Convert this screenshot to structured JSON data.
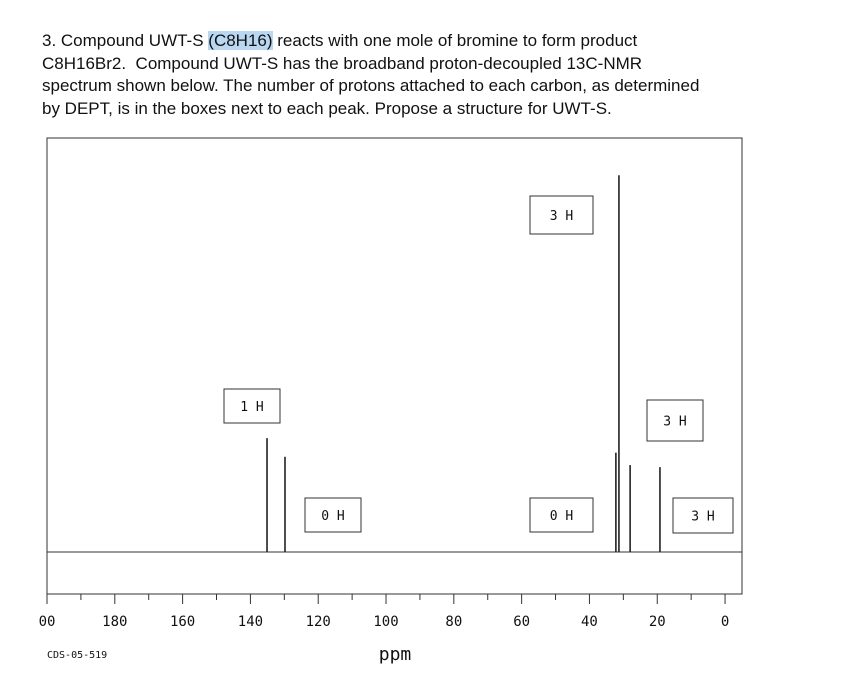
{
  "question": {
    "line1_before": "3. Compound UWT-S ",
    "line1_highlight": "(C8H16)",
    "line1_after": " reacts with one mole of bromine to form product",
    "line2": "C8H16Br2.  Compound UWT-S has the broadband proton-decoupled 13C-NMR",
    "line3": "spectrum shown below. The number of protons attached to each carbon, as determined",
    "line4": "by DEPT, is in the boxes next to each peak. Propose a structure for UWT-S."
  },
  "spectrum": {
    "x_label": "ppm",
    "code": "CDS-05-519",
    "xlim": [
      200,
      -5
    ],
    "ylim": [
      0,
      100
    ],
    "xticks": [
      {
        "value": 200,
        "label": "00"
      },
      180,
      160,
      140,
      120,
      100,
      80,
      60,
      40,
      20,
      0
    ],
    "xticks_minor": [
      190,
      170,
      150,
      130,
      110,
      90,
      70,
      50,
      30,
      10
    ],
    "peaks": [
      {
        "ppm": 135.1,
        "intensity": 27.5
      },
      {
        "ppm": 129.8,
        "intensity": 23
      },
      {
        "ppm": 32.2,
        "intensity": 24
      },
      {
        "ppm": 31.3,
        "intensity": 91
      },
      {
        "ppm": 28.0,
        "intensity": 21
      },
      {
        "ppm": 19.2,
        "intensity": 20.5
      }
    ],
    "dept_labels": [
      "1 H",
      "0 H",
      "3 H",
      "0 H",
      "3 H",
      "3 H"
    ]
  }
}
